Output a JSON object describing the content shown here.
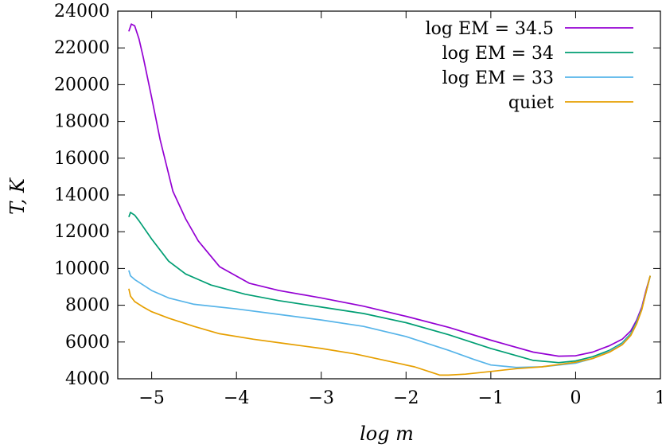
{
  "chart_data": {
    "type": "line",
    "title": "",
    "xlabel": "log m",
    "ylabel": "T, K",
    "xlim": [
      -5.4,
      1.0
    ],
    "ylim": [
      4000,
      24000
    ],
    "x_ticks": [
      -5,
      -4,
      -3,
      -2,
      -1,
      0,
      1
    ],
    "x_tick_labels": [
      "−5",
      "−4",
      "−3",
      "−2",
      "−1",
      "0",
      "1"
    ],
    "y_ticks": [
      4000,
      6000,
      8000,
      10000,
      12000,
      14000,
      16000,
      18000,
      20000,
      22000,
      24000
    ],
    "y_tick_labels": [
      "4000",
      "6000",
      "8000",
      "10000",
      "12000",
      "14000",
      "16000",
      "18000",
      "20000",
      "22000",
      "24000"
    ],
    "grid": false,
    "legend_position": "top-right",
    "series": [
      {
        "name": "log EM = 34.5",
        "color": "#9400d3",
        "x": [
          -5.27,
          -5.24,
          -5.2,
          -5.15,
          -5.1,
          -5.0,
          -4.9,
          -4.75,
          -4.6,
          -4.45,
          -4.2,
          -3.85,
          -3.5,
          -3.0,
          -2.5,
          -2.0,
          -1.5,
          -1.0,
          -0.5,
          -0.2,
          0.0,
          0.2,
          0.4,
          0.55,
          0.65,
          0.72,
          0.78,
          0.83,
          0.88
        ],
        "y": [
          22900,
          23300,
          23200,
          22500,
          21500,
          19300,
          17000,
          14200,
          12700,
          11500,
          10100,
          9200,
          8800,
          8400,
          7950,
          7400,
          6800,
          6100,
          5450,
          5230,
          5250,
          5450,
          5800,
          6150,
          6600,
          7200,
          7900,
          8800,
          9600
        ]
      },
      {
        "name": "log EM = 34",
        "color": "#009e73",
        "x": [
          -5.27,
          -5.25,
          -5.2,
          -5.15,
          -5.0,
          -4.8,
          -4.6,
          -4.3,
          -3.9,
          -3.5,
          -3.0,
          -2.5,
          -2.0,
          -1.5,
          -1.0,
          -0.5,
          -0.2,
          0.0,
          0.2,
          0.4,
          0.55,
          0.65,
          0.72,
          0.78,
          0.83,
          0.88
        ],
        "y": [
          12800,
          13050,
          12900,
          12600,
          11600,
          10400,
          9700,
          9100,
          8600,
          8250,
          7900,
          7550,
          7050,
          6400,
          5650,
          5000,
          4880,
          4970,
          5200,
          5550,
          5950,
          6450,
          7100,
          7800,
          8700,
          9600
        ]
      },
      {
        "name": "log EM = 33",
        "color": "#56b4e9",
        "x": [
          -5.27,
          -5.25,
          -5.2,
          -5.1,
          -5.0,
          -4.8,
          -4.5,
          -4.0,
          -3.5,
          -3.0,
          -2.5,
          -2.0,
          -1.5,
          -1.2,
          -1.0,
          -0.7,
          -0.4,
          0.0,
          0.2,
          0.4,
          0.55,
          0.65,
          0.72,
          0.78,
          0.83,
          0.88
        ],
        "y": [
          9900,
          9600,
          9400,
          9100,
          8800,
          8400,
          8050,
          7800,
          7500,
          7200,
          6850,
          6300,
          5550,
          5050,
          4750,
          4620,
          4650,
          4850,
          5100,
          5500,
          5900,
          6400,
          7050,
          7800,
          8700,
          9600
        ]
      },
      {
        "name": "quiet",
        "color": "#e69f00",
        "x": [
          -5.27,
          -5.25,
          -5.2,
          -5.1,
          -5.0,
          -4.8,
          -4.5,
          -4.2,
          -3.8,
          -3.4,
          -3.0,
          -2.6,
          -2.2,
          -1.9,
          -1.7,
          -1.6,
          -1.5,
          -1.3,
          -1.0,
          -0.7,
          -0.4,
          0.0,
          0.2,
          0.4,
          0.55,
          0.65,
          0.72,
          0.78,
          0.83,
          0.88
        ],
        "y": [
          8900,
          8500,
          8200,
          7900,
          7650,
          7300,
          6850,
          6450,
          6150,
          5900,
          5650,
          5350,
          4950,
          4650,
          4350,
          4200,
          4200,
          4250,
          4400,
          4550,
          4650,
          4900,
          5100,
          5450,
          5850,
          6350,
          7000,
          7750,
          8700,
          9600
        ]
      }
    ]
  }
}
